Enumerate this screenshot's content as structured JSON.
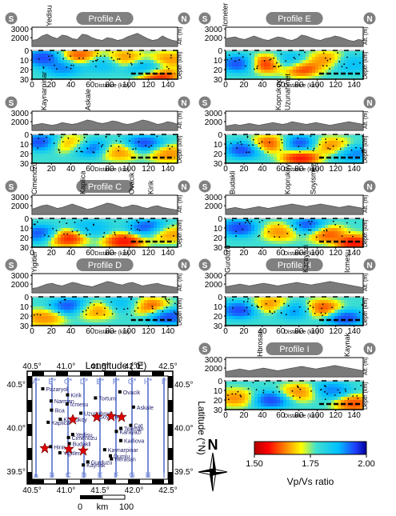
{
  "chart_data": [
    {
      "type": "heatmap",
      "panel": "A",
      "title": "Profile A",
      "left_label": "S",
      "right_label": "N",
      "sites": [
        {
          "name": "Yedisu",
          "km": 20
        }
      ],
      "topo_ylabel": "Alt. (m)",
      "topo_ticks": [
        3000,
        2000
      ],
      "xlabel": "Distance (km)",
      "xticks": [
        0,
        20,
        40,
        60,
        80,
        100,
        120,
        140
      ],
      "ylabel": "Depth (km)",
      "yticks": [
        0,
        10,
        20,
        30
      ],
      "elev": [
        1700,
        1800,
        2200,
        2400,
        2100,
        1900,
        2300,
        2200,
        1900,
        1800,
        2400,
        2300,
        2000,
        1800,
        1700,
        2000,
        1900,
        1700,
        1800,
        2100,
        2300,
        2500,
        2200,
        1900,
        1700,
        1800,
        2200,
        1900,
        1700,
        1600
      ],
      "anomalies": [
        {
          "x": 12,
          "y": 8,
          "v": 2.0
        },
        {
          "x": 32,
          "y": 18,
          "v": 1.95
        },
        {
          "x": 50,
          "y": 6,
          "v": 1.55
        },
        {
          "x": 72,
          "y": 14,
          "v": 1.9
        },
        {
          "x": 95,
          "y": 8,
          "v": 1.6
        },
        {
          "x": 118,
          "y": 18,
          "v": 1.95
        },
        {
          "x": 130,
          "y": 26,
          "v": 1.5
        },
        {
          "x": 140,
          "y": 10,
          "v": 1.6
        }
      ]
    },
    {
      "type": "heatmap",
      "panel": "E",
      "title": "Profile E",
      "left_label": "S",
      "right_label": "N",
      "sites": [
        {
          "name": "Icmeler",
          "km": 2
        }
      ],
      "topo_ylabel": "Alt. (m)",
      "topo_ticks": [
        3000,
        2000
      ],
      "xlabel": "Distance (km)",
      "xticks": [
        0,
        20,
        40,
        60,
        80,
        100,
        120,
        140
      ],
      "ylabel": "Depth (km)",
      "yticks": [
        0,
        10,
        20,
        30
      ],
      "elev": [
        1900,
        2000,
        2100,
        1900,
        1800,
        2000,
        2200,
        2000,
        1800,
        1700,
        1900,
        2100,
        2000,
        1800,
        1700,
        1900,
        2300,
        2200,
        2000,
        1800,
        1700,
        1900,
        2000,
        2200,
        2100,
        1900,
        1700,
        1600,
        1800,
        1700
      ],
      "anomalies": [
        {
          "x": 15,
          "y": 14,
          "v": 2.0
        },
        {
          "x": 45,
          "y": 14,
          "v": 1.5
        },
        {
          "x": 70,
          "y": 12,
          "v": 1.95
        },
        {
          "x": 82,
          "y": 18,
          "v": 1.5
        },
        {
          "x": 110,
          "y": 10,
          "v": 1.6
        },
        {
          "x": 135,
          "y": 14,
          "v": 1.9
        }
      ]
    },
    {
      "type": "heatmap",
      "panel": "B",
      "title": "",
      "left_label": "S",
      "right_label": "N",
      "sites": [
        {
          "name": "Kaynarpinar",
          "km": 15
        },
        {
          "name": "Askale",
          "km": 60
        }
      ],
      "topo_ylabel": "Alt. (m)",
      "topo_ticks": [
        3000,
        2000
      ],
      "xlabel": "Distance (km)",
      "xticks": [
        0,
        20,
        40,
        60,
        80,
        100,
        120,
        140
      ],
      "ylabel": "Depth (km)",
      "yticks": [
        0,
        10,
        20,
        30
      ],
      "elev": [
        1600,
        1700,
        1800,
        1700,
        1600,
        1700,
        1900,
        1800,
        1700,
        1800,
        2000,
        2200,
        2100,
        1900,
        1800,
        1900,
        2100,
        2000,
        1800,
        1700,
        1800,
        2000,
        2200,
        2100,
        1900,
        1700,
        1800,
        2000,
        1900,
        1700
      ],
      "anomalies": [
        {
          "x": 10,
          "y": 8,
          "v": 2.0
        },
        {
          "x": 40,
          "y": 10,
          "v": 1.6
        },
        {
          "x": 60,
          "y": 14,
          "v": 2.0
        },
        {
          "x": 90,
          "y": 18,
          "v": 1.6
        },
        {
          "x": 115,
          "y": 10,
          "v": 2.0
        },
        {
          "x": 140,
          "y": 20,
          "v": 1.6
        }
      ]
    },
    {
      "type": "heatmap",
      "panel": "F",
      "title": "",
      "left_label": "S",
      "right_label": "N",
      "sites": [
        {
          "name": "Koprukoy",
          "km": 60
        },
        {
          "name": "Uzunahmet",
          "km": 70
        }
      ],
      "topo_ylabel": "Alt. (m)",
      "topo_ticks": [
        3000,
        2000
      ],
      "xlabel": "Distance (km)",
      "xticks": [
        0,
        20,
        40,
        60,
        80,
        100,
        120,
        140
      ],
      "ylabel": "Depth (km)",
      "yticks": [
        0,
        10,
        20,
        30
      ],
      "elev": [
        1500,
        1600,
        1700,
        1600,
        1700,
        1800,
        1700,
        1600,
        1700,
        1800,
        1900,
        1800,
        1700,
        1800,
        2000,
        1900,
        1800,
        1700,
        1800,
        1900,
        1800,
        1700,
        1600,
        1700,
        1800,
        1900,
        2000,
        1900,
        1800,
        1700
      ],
      "anomalies": [
        {
          "x": 20,
          "y": 16,
          "v": 2.0
        },
        {
          "x": 48,
          "y": 10,
          "v": 1.55
        },
        {
          "x": 82,
          "y": 24,
          "v": 1.5
        },
        {
          "x": 80,
          "y": 10,
          "v": 2.0
        },
        {
          "x": 115,
          "y": 12,
          "v": 1.6
        },
        {
          "x": 140,
          "y": 20,
          "v": 1.95
        }
      ]
    },
    {
      "type": "heatmap",
      "panel": "C",
      "title": "Profile C",
      "left_label": "S",
      "right_label": "N",
      "sites": [
        {
          "name": "Cimenozu",
          "km": 5
        },
        {
          "name": "Kirik",
          "km": 125
        },
        {
          "name": "Ovacik",
          "km": 105
        },
        {
          "name": "Kaplica",
          "km": 55
        }
      ],
      "topo_ylabel": "Alt. (m)",
      "topo_ticks": [
        3000,
        2000
      ],
      "xlabel": "Distance (km)",
      "xticks": [
        0,
        20,
        40,
        60,
        80,
        100,
        120,
        140
      ],
      "ylabel": "Depth (km)",
      "yticks": [
        0,
        10,
        20,
        30
      ],
      "elev": [
        1600,
        1800,
        2000,
        2100,
        1900,
        1700,
        1800,
        2000,
        2200,
        2000,
        1800,
        1600,
        1700,
        1900,
        2100,
        2300,
        2200,
        2000,
        1800,
        1900,
        2100,
        2000,
        1800,
        1700,
        1900,
        2000,
        1800,
        1700,
        1600,
        1500
      ],
      "anomalies": [
        {
          "x": 10,
          "y": 16,
          "v": 2.0
        },
        {
          "x": 35,
          "y": 20,
          "v": 1.5
        },
        {
          "x": 60,
          "y": 10,
          "v": 1.9
        },
        {
          "x": 95,
          "y": 24,
          "v": 1.5
        },
        {
          "x": 120,
          "y": 10,
          "v": 2.0
        },
        {
          "x": 140,
          "y": 16,
          "v": 1.6
        }
      ]
    },
    {
      "type": "heatmap",
      "panel": "G",
      "title": "",
      "left_label": "S",
      "right_label": "N",
      "sites": [
        {
          "name": "Budakli",
          "km": 10
        },
        {
          "name": "Koprukoy",
          "km": 70
        },
        {
          "name": "Soyismez",
          "km": 98
        }
      ],
      "topo_ylabel": "Alt. (m)",
      "topo_ticks": [
        3000,
        2000
      ],
      "xlabel": "Distance (km)",
      "xticks": [
        0,
        20,
        40,
        60,
        80,
        100,
        120,
        140
      ],
      "ylabel": "Depth (km)",
      "yticks": [
        0,
        10,
        20,
        30
      ],
      "elev": [
        1600,
        1700,
        1800,
        1700,
        1600,
        1700,
        1800,
        1900,
        1800,
        1700,
        1800,
        1900,
        2000,
        2100,
        2200,
        2100,
        2000,
        1900,
        2000,
        2100,
        2200,
        2100,
        2000,
        1900,
        1800,
        1900,
        2000,
        1900,
        1800,
        1700
      ],
      "anomalies": [
        {
          "x": 15,
          "y": 10,
          "v": 2.0
        },
        {
          "x": 60,
          "y": 14,
          "v": 1.6
        },
        {
          "x": 90,
          "y": 8,
          "v": 2.0
        },
        {
          "x": 110,
          "y": 16,
          "v": 1.55
        },
        {
          "x": 140,
          "y": 26,
          "v": 1.5
        }
      ]
    },
    {
      "type": "heatmap",
      "panel": "D",
      "title": "Profile D",
      "left_label": "S",
      "right_label": "N",
      "sites": [
        {
          "name": "Yigitler",
          "km": 5
        }
      ],
      "topo_ylabel": "Alt. (m)",
      "topo_ticks": [
        3000,
        2000
      ],
      "xlabel": "Distance (km)",
      "xticks": [
        0,
        20,
        40,
        60,
        80,
        100,
        120,
        140
      ],
      "ylabel": "Depth (km)",
      "yticks": [
        0,
        10,
        20,
        30
      ],
      "elev": [
        1500,
        1600,
        1800,
        2000,
        2100,
        1900,
        1800,
        2000,
        2200,
        2100,
        1900,
        1800,
        1700,
        1900,
        2100,
        2300,
        2200,
        2000,
        1900,
        2100,
        2200,
        2000,
        1800,
        1900,
        2000,
        2100,
        1900,
        1800,
        1700,
        1600
      ],
      "anomalies": [
        {
          "x": 12,
          "y": 22,
          "v": 1.6
        },
        {
          "x": 40,
          "y": 10,
          "v": 2.0
        },
        {
          "x": 65,
          "y": 14,
          "v": 1.6
        },
        {
          "x": 95,
          "y": 8,
          "v": 1.9
        },
        {
          "x": 120,
          "y": 10,
          "v": 1.55
        },
        {
          "x": 140,
          "y": 20,
          "v": 2.0
        }
      ]
    },
    {
      "type": "heatmap",
      "panel": "H",
      "title": "Profile H",
      "left_label": "S",
      "right_label": "N",
      "sites": [
        {
          "name": "Gurduzu",
          "km": 5
        },
        {
          "name": "Karayazi",
          "km": 90
        },
        {
          "name": "Icmesu",
          "km": 135
        }
      ],
      "topo_ylabel": "Alt. (m)",
      "topo_ticks": [
        3000,
        2000
      ],
      "xlabel": "Distance (km)",
      "xticks": [
        0,
        20,
        40,
        60,
        80,
        100,
        120,
        140
      ],
      "ylabel": "Depth (km)",
      "yticks": [
        0,
        10,
        20,
        30
      ],
      "elev": [
        1700,
        1800,
        1900,
        2000,
        1900,
        1800,
        1900,
        2000,
        2100,
        2000,
        1900,
        1800,
        1900,
        2000,
        2100,
        2200,
        2100,
        2000,
        1900,
        2000,
        2100,
        2200,
        2300,
        2200,
        2100,
        2000,
        1900,
        1800,
        1700,
        1600
      ],
      "anomalies": [
        {
          "x": 15,
          "y": 14,
          "v": 2.0
        },
        {
          "x": 50,
          "y": 8,
          "v": 1.6
        },
        {
          "x": 75,
          "y": 14,
          "v": 1.95
        },
        {
          "x": 105,
          "y": 12,
          "v": 1.55
        },
        {
          "x": 130,
          "y": 22,
          "v": 2.0
        }
      ]
    },
    {
      "type": "heatmap",
      "panel": "I",
      "title": "Profile I",
      "left_label": "S",
      "right_label": "N",
      "sites": [
        {
          "name": "Hbrosan",
          "km": 40
        },
        {
          "name": "Kaynak",
          "km": 135
        }
      ],
      "topo_ylabel": "Alt. (m)",
      "topo_ticks": [
        3000,
        2000
      ],
      "xlabel": "Distance (km)",
      "xticks": [
        0,
        20,
        40,
        60,
        80,
        100,
        120,
        140
      ],
      "ylabel": "Depth (km)",
      "yticks": [
        0,
        10,
        20,
        30
      ],
      "elev": [
        1600,
        1700,
        1800,
        1900,
        1800,
        1700,
        1800,
        1900,
        2000,
        1900,
        1800,
        1700,
        1800,
        1900,
        2000,
        2100,
        2200,
        2100,
        2000,
        1900,
        2000,
        2100,
        2200,
        2300,
        2200,
        2100,
        2000,
        1900,
        1800,
        1700
      ],
      "anomalies": [
        {
          "x": 10,
          "y": 18,
          "v": 1.6
        },
        {
          "x": 50,
          "y": 20,
          "v": 2.0
        },
        {
          "x": 80,
          "y": 12,
          "v": 1.6
        },
        {
          "x": 115,
          "y": 10,
          "v": 1.95
        },
        {
          "x": 140,
          "y": 24,
          "v": 1.55
        }
      ]
    }
  ],
  "map": {
    "title": "Longitude (°E)",
    "ylabel": "Latitude (°N)",
    "lon_ticks_top": [
      "40.5°",
      "41.0°",
      "41.5°",
      "42.0°",
      "42.5°"
    ],
    "lon_ticks_bottom": [
      "40.5°",
      "41.0°",
      "41.5°",
      "42.0°",
      "42.5°"
    ],
    "lat_ticks": [
      "40.5°",
      "40.0°",
      "39.5°"
    ],
    "profile_labels_top": [
      "A\"",
      "B\"",
      "C\"",
      "D\"",
      "E\"",
      "F\"",
      "G\"",
      "H\"",
      "I\""
    ],
    "profile_labels_bottom": [
      "A",
      "B",
      "C",
      "D",
      "E",
      "F",
      "G",
      "H",
      "I"
    ],
    "cities": [
      "Pazaryol",
      "Ovacik",
      "Kirik",
      "Tortum",
      "Narman",
      "Icmesu",
      "Askale",
      "Ilica",
      "Uzunahmet",
      "Soyismez",
      "Koprukoy",
      "Kaplica",
      "Cat",
      "Tekman",
      "Karayazi",
      "Yedisu",
      "Cimenozu",
      "Karliova",
      "Budakli",
      "Hinis",
      "Kaynarpinar",
      "Yigitler",
      "Dumlu",
      "Herasan",
      "Gurduzu",
      "Kaynak"
    ],
    "scale": {
      "labels": [
        "0",
        "km",
        "100"
      ]
    },
    "north_label": "N"
  },
  "colorbar": {
    "label": "Vp/Vs ratio",
    "ticks": [
      "1.50",
      "1.75",
      "2.00"
    ],
    "min": 1.5,
    "max": 2.0
  }
}
